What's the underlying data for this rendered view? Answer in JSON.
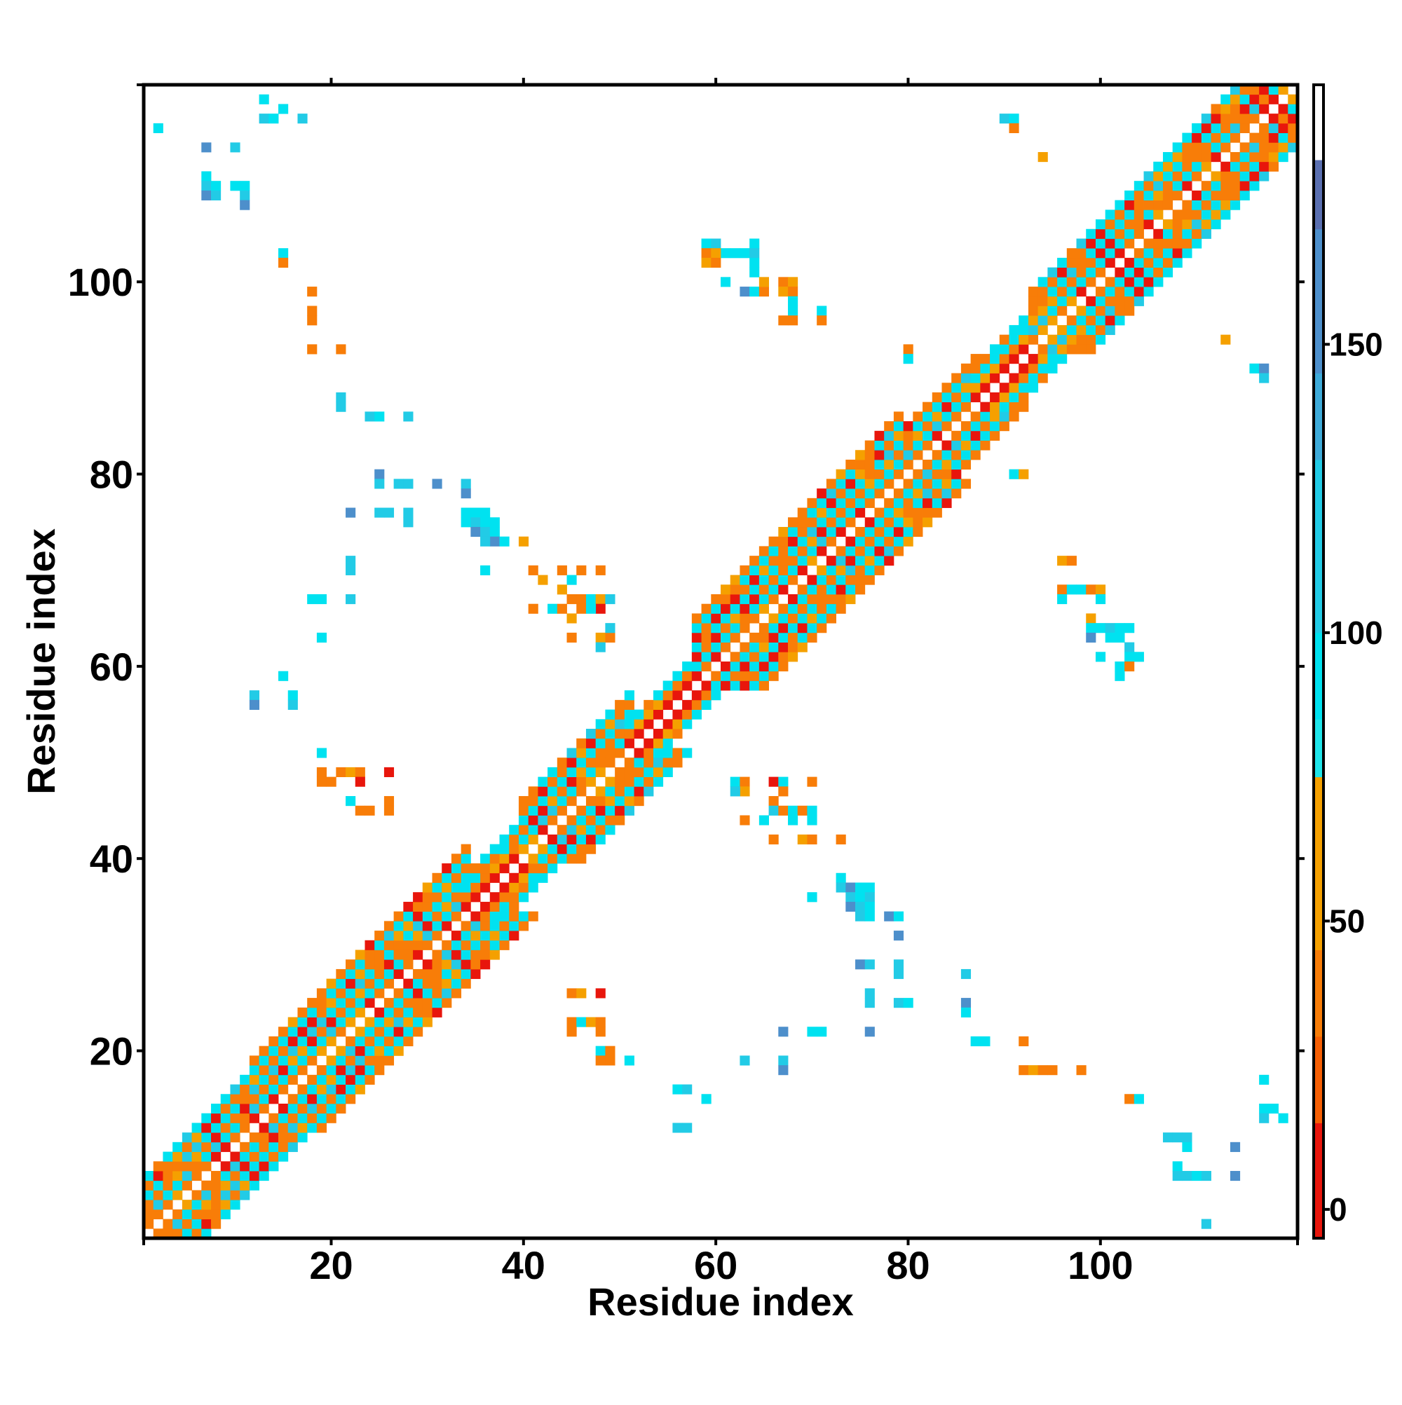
{
  "chart_data": {
    "type": "heatmap",
    "title": "",
    "xlabel": "Residue index",
    "ylabel": "Residue index",
    "xlim": [
      0.5,
      120.5
    ],
    "ylim": [
      0.5,
      120.5
    ],
    "x_ticks": [
      20,
      40,
      60,
      80,
      100
    ],
    "y_ticks": [
      20,
      40,
      60,
      80,
      100
    ],
    "grid": false,
    "colorbar": {
      "ticks": [
        0,
        50,
        100,
        150
      ],
      "range": [
        -5,
        195
      ],
      "bands": [
        {
          "from": -5,
          "to": 15,
          "color": "#e8160c"
        },
        {
          "from": 15,
          "to": 30,
          "color": "#f65f04"
        },
        {
          "from": 30,
          "to": 45,
          "color": "#f87d08"
        },
        {
          "from": 45,
          "to": 75,
          "color": "#f5a000"
        },
        {
          "from": 75,
          "to": 85,
          "color": "#1fe5ea"
        },
        {
          "from": 85,
          "to": 100,
          "color": "#00e2f0"
        },
        {
          "from": 100,
          "to": 130,
          "color": "#22cbe6"
        },
        {
          "from": 130,
          "to": 145,
          "color": "#3eaad8"
        },
        {
          "from": 145,
          "to": 170,
          "color": "#4d8fcb"
        },
        {
          "from": 170,
          "to": 182,
          "color": "#5a6fb0"
        },
        {
          "from": 182,
          "to": 195,
          "color": "#ffffff"
        }
      ]
    },
    "colors": {
      "red": "#e8160c",
      "orange": "#f87d08",
      "amber": "#f5a000",
      "cyan": "#00e2f0",
      "skyblue": "#22cbe6",
      "steelblue": "#4d8fcb"
    },
    "cell_values": {
      "red": 5,
      "orange": 40,
      "amber": 60,
      "cyan": 90,
      "skyblue": 115,
      "steelblue": 160
    },
    "diagonal_segments": [
      {
        "from": 1,
        "to": 12,
        "halfwidth": 6,
        "pattern": "beta"
      },
      {
        "from": 12,
        "to": 34,
        "halfwidth": 7,
        "pattern": "beta"
      },
      {
        "from": 34,
        "to": 40,
        "halfwidth": 4,
        "pattern": "helix"
      },
      {
        "from": 40,
        "to": 51,
        "halfwidth": 6,
        "pattern": "beta"
      },
      {
        "from": 51,
        "to": 58,
        "halfwidth": 3,
        "pattern": "helix"
      },
      {
        "from": 58,
        "to": 79,
        "halfwidth": 7,
        "pattern": "beta"
      },
      {
        "from": 79,
        "to": 87,
        "halfwidth": 5,
        "pattern": "beta"
      },
      {
        "from": 87,
        "to": 93,
        "halfwidth": 4,
        "pattern": "helix"
      },
      {
        "from": 93,
        "to": 120,
        "halfwidth": 6,
        "pattern": "beta"
      }
    ],
    "points": [
      [
        2,
        116,
        "cyan"
      ],
      [
        13,
        119,
        "cyan"
      ],
      [
        13,
        117,
        "skyblue"
      ],
      [
        14,
        117,
        "cyan"
      ],
      [
        15,
        118,
        "cyan"
      ],
      [
        17,
        117,
        "skyblue"
      ],
      [
        7,
        114,
        "steelblue"
      ],
      [
        10,
        114,
        "skyblue"
      ],
      [
        7,
        111,
        "cyan"
      ],
      [
        7,
        110,
        "skyblue"
      ],
      [
        7,
        109,
        "steelblue"
      ],
      [
        8,
        110,
        "cyan"
      ],
      [
        8,
        109,
        "skyblue"
      ],
      [
        10,
        110,
        "cyan"
      ],
      [
        11,
        110,
        "cyan"
      ],
      [
        11,
        109,
        "skyblue"
      ],
      [
        11,
        108,
        "steelblue"
      ],
      [
        15,
        103,
        "cyan"
      ],
      [
        15,
        102,
        "orange"
      ],
      [
        18,
        99,
        "orange"
      ],
      [
        18,
        97,
        "orange"
      ],
      [
        18,
        96,
        "orange"
      ],
      [
        18,
        93,
        "orange"
      ],
      [
        21,
        93,
        "orange"
      ],
      [
        21,
        88,
        "skyblue"
      ],
      [
        21,
        87,
        "skyblue"
      ],
      [
        24,
        86,
        "skyblue"
      ],
      [
        25,
        86,
        "cyan"
      ],
      [
        28,
        86,
        "skyblue"
      ],
      [
        25,
        80,
        "steelblue"
      ],
      [
        25,
        79,
        "skyblue"
      ],
      [
        27,
        79,
        "skyblue"
      ],
      [
        28,
        79,
        "skyblue"
      ],
      [
        31,
        79,
        "steelblue"
      ],
      [
        34,
        79,
        "skyblue"
      ],
      [
        34,
        78,
        "steelblue"
      ],
      [
        22,
        76,
        "steelblue"
      ],
      [
        25,
        76,
        "skyblue"
      ],
      [
        26,
        76,
        "skyblue"
      ],
      [
        28,
        76,
        "skyblue"
      ],
      [
        28,
        75,
        "skyblue"
      ],
      [
        34,
        76,
        "cyan"
      ],
      [
        35,
        76,
        "cyan"
      ],
      [
        36,
        76,
        "cyan"
      ],
      [
        34,
        75,
        "cyan"
      ],
      [
        35,
        75,
        "skyblue"
      ],
      [
        36,
        75,
        "cyan"
      ],
      [
        37,
        75,
        "cyan"
      ],
      [
        35,
        74,
        "steelblue"
      ],
      [
        36,
        74,
        "skyblue"
      ],
      [
        37,
        74,
        "cyan"
      ],
      [
        37,
        73,
        "steelblue"
      ],
      [
        36,
        73,
        "skyblue"
      ],
      [
        38,
        73,
        "cyan"
      ],
      [
        40,
        73,
        "amber"
      ],
      [
        36,
        70,
        "cyan"
      ],
      [
        22,
        71,
        "skyblue"
      ],
      [
        22,
        70,
        "skyblue"
      ],
      [
        18,
        67,
        "cyan"
      ],
      [
        19,
        67,
        "cyan"
      ],
      [
        22,
        67,
        "skyblue"
      ],
      [
        19,
        63,
        "cyan"
      ],
      [
        41,
        70,
        "orange"
      ],
      [
        42,
        69,
        "amber"
      ],
      [
        44,
        70,
        "orange"
      ],
      [
        45,
        69,
        "cyan"
      ],
      [
        46,
        70,
        "orange"
      ],
      [
        48,
        70,
        "orange"
      ],
      [
        44,
        68,
        "amber"
      ],
      [
        45,
        67,
        "orange"
      ],
      [
        46,
        67,
        "orange"
      ],
      [
        47,
        67,
        "cyan"
      ],
      [
        48,
        67,
        "amber"
      ],
      [
        49,
        67,
        "skyblue"
      ],
      [
        48,
        66,
        "red"
      ],
      [
        41,
        66,
        "orange"
      ],
      [
        43,
        66,
        "cyan"
      ],
      [
        44,
        66,
        "orange"
      ],
      [
        45,
        65,
        "amber"
      ],
      [
        46,
        66,
        "orange"
      ],
      [
        47,
        66,
        "cyan"
      ],
      [
        45,
        63,
        "orange"
      ],
      [
        48,
        63,
        "amber"
      ],
      [
        49,
        63,
        "orange"
      ],
      [
        49,
        64,
        "skyblue"
      ],
      [
        48,
        62,
        "skyblue"
      ],
      [
        15,
        59,
        "cyan"
      ],
      [
        12,
        57,
        "skyblue"
      ],
      [
        12,
        56,
        "steelblue"
      ],
      [
        16,
        57,
        "cyan"
      ],
      [
        16,
        56,
        "skyblue"
      ],
      [
        19,
        51,
        "cyan"
      ],
      [
        19,
        49,
        "orange"
      ],
      [
        19,
        48,
        "orange"
      ],
      [
        20,
        48,
        "orange"
      ],
      [
        21,
        49,
        "orange"
      ],
      [
        22,
        49,
        "amber"
      ],
      [
        23,
        49,
        "orange"
      ],
      [
        23,
        48,
        "red"
      ],
      [
        26,
        49,
        "red"
      ],
      [
        22,
        46,
        "cyan"
      ],
      [
        23,
        45,
        "orange"
      ],
      [
        24,
        45,
        "orange"
      ],
      [
        26,
        46,
        "orange"
      ],
      [
        26,
        45,
        "orange"
      ],
      [
        96,
        71,
        "amber"
      ],
      [
        97,
        71,
        "orange"
      ],
      [
        96,
        68,
        "orange"
      ],
      [
        97,
        68,
        "cyan"
      ],
      [
        98,
        68,
        "cyan"
      ],
      [
        99,
        68,
        "orange"
      ],
      [
        100,
        68,
        "amber"
      ],
      [
        96,
        67,
        "cyan"
      ],
      [
        100,
        67,
        "cyan"
      ],
      [
        99,
        65,
        "amber"
      ],
      [
        100,
        64,
        "cyan"
      ],
      [
        99,
        64,
        "cyan"
      ],
      [
        101,
        64,
        "skyblue"
      ],
      [
        102,
        64,
        "cyan"
      ],
      [
        103,
        64,
        "cyan"
      ],
      [
        99,
        63,
        "steelblue"
      ],
      [
        101,
        63,
        "cyan"
      ],
      [
        102,
        63,
        "cyan"
      ],
      [
        103,
        62,
        "skyblue"
      ],
      [
        103,
        61,
        "cyan"
      ],
      [
        104,
        61,
        "cyan"
      ],
      [
        102,
        60,
        "cyan"
      ],
      [
        103,
        60,
        "orange"
      ],
      [
        102,
        59,
        "cyan"
      ],
      [
        100,
        61,
        "cyan"
      ],
      [
        91,
        80,
        "cyan"
      ],
      [
        92,
        80,
        "amber"
      ],
      [
        90,
        117,
        "skyblue"
      ],
      [
        91,
        117,
        "cyan"
      ],
      [
        91,
        116,
        "orange"
      ],
      [
        94,
        113,
        "amber"
      ],
      [
        113,
        94,
        "amber"
      ],
      [
        116,
        91,
        "cyan"
      ],
      [
        117,
        91,
        "steelblue"
      ],
      [
        117,
        90,
        "skyblue"
      ],
      [
        80,
        93,
        "orange"
      ],
      [
        80,
        92,
        "cyan"
      ],
      [
        59,
        104,
        "cyan"
      ],
      [
        60,
        104,
        "skyblue"
      ],
      [
        61,
        103,
        "cyan"
      ],
      [
        62,
        103,
        "cyan"
      ],
      [
        63,
        103,
        "cyan"
      ],
      [
        64,
        104,
        "cyan"
      ],
      [
        59,
        103,
        "orange"
      ],
      [
        60,
        103,
        "amber"
      ],
      [
        59,
        102,
        "amber"
      ],
      [
        60,
        102,
        "orange"
      ],
      [
        64,
        103,
        "skyblue"
      ],
      [
        64,
        102,
        "cyan"
      ],
      [
        64,
        101,
        "cyan"
      ],
      [
        61,
        100,
        "cyan"
      ],
      [
        63,
        99,
        "steelblue"
      ],
      [
        64,
        99,
        "cyan"
      ],
      [
        65,
        99,
        "orange"
      ],
      [
        65,
        100,
        "amber"
      ],
      [
        67,
        100,
        "orange"
      ],
      [
        68,
        100,
        "amber"
      ],
      [
        67,
        99,
        "amber"
      ],
      [
        68,
        99,
        "orange"
      ],
      [
        68,
        98,
        "cyan"
      ],
      [
        68,
        97,
        "cyan"
      ],
      [
        67,
        96,
        "orange"
      ],
      [
        68,
        96,
        "orange"
      ],
      [
        71,
        97,
        "cyan"
      ],
      [
        71,
        96,
        "orange"
      ],
      [
        62,
        48,
        "cyan"
      ],
      [
        63,
        48,
        "orange"
      ],
      [
        63,
        47,
        "amber"
      ],
      [
        62,
        47,
        "skyblue"
      ],
      [
        66,
        48,
        "red"
      ],
      [
        67,
        48,
        "cyan"
      ],
      [
        67,
        47,
        "orange"
      ],
      [
        70,
        48,
        "orange"
      ],
      [
        66,
        46,
        "orange"
      ],
      [
        66,
        45,
        "skyblue"
      ],
      [
        67,
        45,
        "orange"
      ],
      [
        68,
        45,
        "cyan"
      ],
      [
        69,
        45,
        "orange"
      ],
      [
        70,
        45,
        "cyan"
      ],
      [
        70,
        44,
        "cyan"
      ],
      [
        68,
        44,
        "cyan"
      ],
      [
        65,
        44,
        "cyan"
      ],
      [
        63,
        44,
        "orange"
      ],
      [
        66,
        42,
        "orange"
      ],
      [
        69,
        42,
        "amber"
      ],
      [
        70,
        42,
        "orange"
      ],
      [
        73,
        42,
        "orange"
      ],
      [
        70,
        36,
        "cyan"
      ],
      [
        73,
        38,
        "cyan"
      ],
      [
        73,
        37,
        "skyblue"
      ],
      [
        74,
        37,
        "steelblue"
      ],
      [
        75,
        37,
        "cyan"
      ],
      [
        76,
        37,
        "cyan"
      ],
      [
        74,
        36,
        "skyblue"
      ],
      [
        75,
        36,
        "cyan"
      ],
      [
        76,
        36,
        "skyblue"
      ],
      [
        74,
        35,
        "steelblue"
      ],
      [
        75,
        35,
        "skyblue"
      ],
      [
        76,
        35,
        "cyan"
      ],
      [
        75,
        34,
        "skyblue"
      ],
      [
        76,
        34,
        "cyan"
      ],
      [
        78,
        34,
        "steelblue"
      ],
      [
        79,
        34,
        "cyan"
      ],
      [
        79,
        32,
        "steelblue"
      ],
      [
        75,
        29,
        "steelblue"
      ],
      [
        76,
        29,
        "skyblue"
      ],
      [
        79,
        29,
        "skyblue"
      ],
      [
        79,
        28,
        "skyblue"
      ],
      [
        86,
        28,
        "skyblue"
      ],
      [
        76,
        26,
        "skyblue"
      ],
      [
        76,
        25,
        "skyblue"
      ],
      [
        79,
        25,
        "skyblue"
      ],
      [
        80,
        25,
        "cyan"
      ],
      [
        86,
        25,
        "steelblue"
      ],
      [
        86,
        24,
        "cyan"
      ],
      [
        67,
        22,
        "steelblue"
      ],
      [
        70,
        22,
        "cyan"
      ],
      [
        71,
        22,
        "cyan"
      ],
      [
        76,
        22,
        "steelblue"
      ],
      [
        87,
        21,
        "cyan"
      ],
      [
        88,
        21,
        "cyan"
      ],
      [
        92,
        21,
        "orange"
      ],
      [
        63,
        19,
        "skyblue"
      ],
      [
        67,
        19,
        "skyblue"
      ],
      [
        67,
        18,
        "steelblue"
      ],
      [
        92,
        18,
        "orange"
      ],
      [
        93,
        18,
        "amber"
      ],
      [
        94,
        18,
        "orange"
      ],
      [
        95,
        18,
        "orange"
      ],
      [
        98,
        18,
        "orange"
      ],
      [
        45,
        26,
        "orange"
      ],
      [
        46,
        26,
        "amber"
      ],
      [
        48,
        26,
        "red"
      ],
      [
        45,
        23,
        "orange"
      ],
      [
        46,
        23,
        "cyan"
      ],
      [
        47,
        23,
        "amber"
      ],
      [
        48,
        23,
        "orange"
      ],
      [
        48,
        22,
        "orange"
      ],
      [
        45,
        22,
        "orange"
      ],
      [
        48,
        20,
        "cyan"
      ],
      [
        49,
        20,
        "orange"
      ],
      [
        49,
        19,
        "orange"
      ],
      [
        48,
        19,
        "orange"
      ],
      [
        51,
        19,
        "cyan"
      ],
      [
        56,
        16,
        "cyan"
      ],
      [
        57,
        16,
        "skyblue"
      ],
      [
        59,
        15,
        "cyan"
      ],
      [
        56,
        12,
        "skyblue"
      ],
      [
        57,
        12,
        "skyblue"
      ],
      [
        103,
        15,
        "orange"
      ],
      [
        104,
        15,
        "cyan"
      ],
      [
        117,
        17,
        "cyan"
      ],
      [
        117,
        14,
        "cyan"
      ],
      [
        118,
        14,
        "cyan"
      ],
      [
        117,
        13,
        "skyblue"
      ],
      [
        119,
        13,
        "cyan"
      ],
      [
        107,
        11,
        "skyblue"
      ],
      [
        108,
        11,
        "skyblue"
      ],
      [
        109,
        11,
        "skyblue"
      ],
      [
        109,
        10,
        "cyan"
      ],
      [
        108,
        8,
        "cyan"
      ],
      [
        108,
        7,
        "skyblue"
      ],
      [
        109,
        7,
        "skyblue"
      ],
      [
        110,
        7,
        "cyan"
      ],
      [
        111,
        7,
        "skyblue"
      ],
      [
        114,
        10,
        "steelblue"
      ],
      [
        114,
        7,
        "steelblue"
      ],
      [
        111,
        2,
        "skyblue"
      ]
    ]
  }
}
